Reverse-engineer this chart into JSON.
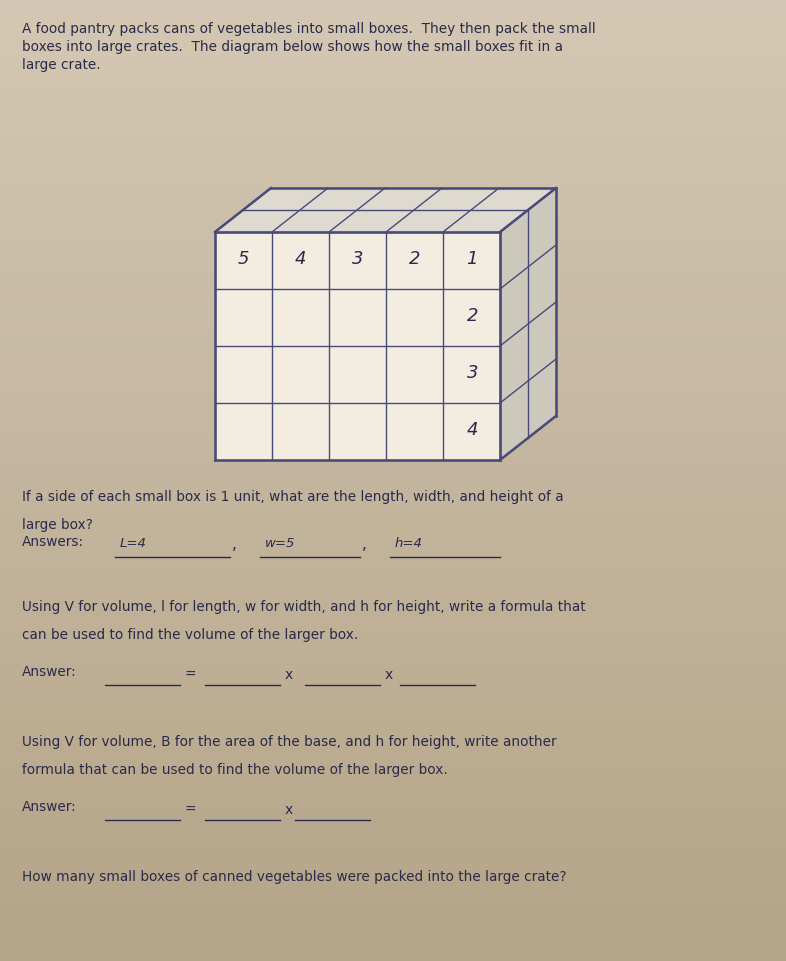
{
  "bg_color_top": "#d4c8b4",
  "bg_color_bottom": "#b8a888",
  "bg_color": "#c8b8a0",
  "text_color": "#2a2a4a",
  "title_line1": "A food pantry packs cans of vegetables into small boxes.  They then pack the small",
  "title_line2": "boxes into large crates.  The diagram below shows how the small boxes fit in a",
  "title_line3": "large crate.",
  "question1_line1": "If a side of each small box is 1 unit, what are the length, width, and height of a",
  "question1_line2": "large box?",
  "answers_label": "Answers:",
  "answer1_text": "L=4",
  "answer2_text": "w=5",
  "answer3_text": "h=4",
  "q2_line1": "Using V for volume, l for length, w for width, and h for height, write a formula that",
  "q2_line2": "can be used to find the volume of the larger box.",
  "q3_line1": "Using V for volume, B for the area of the base, and h for height, write another",
  "q3_line2": "formula that can be used to find the volume of the larger box.",
  "answer_label": "Answer:",
  "question4": "How many small boxes of canned vegetables were packed into the large crate?",
  "front_labels": [
    "5",
    "4",
    "3",
    "2",
    "1"
  ],
  "right_labels": [
    "1",
    "2",
    "3",
    "4"
  ],
  "cube_cols": 5,
  "cube_rows": 4,
  "depth_cols": 2,
  "depth_rows": 1,
  "line_color": "#4a4a7a",
  "face_color": "#f2ede0",
  "top_color": "#dedad0",
  "right_color": "#ccc8bc"
}
